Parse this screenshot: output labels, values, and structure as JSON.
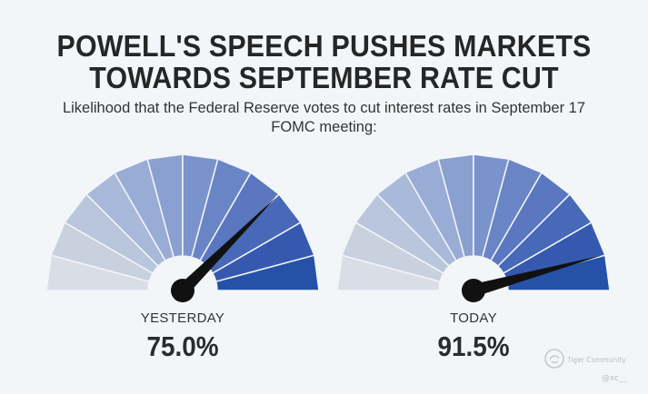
{
  "title_line1": "POWELL'S SPEECH PUSHES MARKETS",
  "title_line2": "TOWARDS SEPTEMBER RATE CUT",
  "subtitle_line1": "Likelihood that the Federal Reserve votes to cut interest rates in September 17",
  "subtitle_line2": "FOMC meeting:",
  "chart_data": [
    {
      "type": "gauge",
      "label": "YESTERDAY",
      "value": 75.0,
      "value_text": "75.0%",
      "range": [
        0,
        100
      ]
    },
    {
      "type": "gauge",
      "label": "TODAY",
      "value": 91.5,
      "value_text": "91.5%",
      "range": [
        0,
        100
      ]
    }
  ],
  "segment_colors": [
    "#d9dee6",
    "#c9d1de",
    "#b9c6dc",
    "#a9b9da",
    "#99acd6",
    "#8aa0d1",
    "#7a93cd",
    "#6a85c6",
    "#5a77c0",
    "#4868b8",
    "#3659b0",
    "#2552a8"
  ],
  "needle_color": "#111111",
  "watermark": {
    "brand": "Tiger Community",
    "handle": "@xc__"
  }
}
